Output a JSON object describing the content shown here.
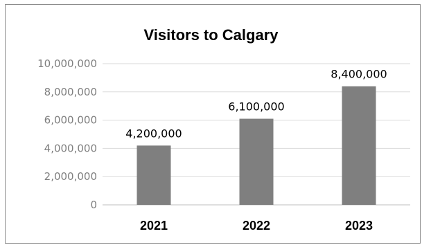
{
  "chart_data": {
    "type": "bar",
    "title": "Visitors to Calgary",
    "xlabel": "",
    "ylabel": "",
    "categories": [
      "2021",
      "2022",
      "2023"
    ],
    "values": [
      4200000,
      6100000,
      8400000
    ],
    "data_labels": [
      "4,200,000",
      "6,100,000",
      "8,400,000"
    ],
    "ylim": [
      0,
      10000000
    ],
    "yticks": [
      0,
      2000000,
      4000000,
      6000000,
      8000000,
      10000000
    ],
    "ytick_labels": [
      "0",
      "2,000,000",
      "4,000,000",
      "6,000,000",
      "8,000,000",
      "10,000,000"
    ],
    "grid": true,
    "legend": "none",
    "colors": {
      "bar": "#7f7f7f",
      "grid": "#d9d9d9",
      "axis_text": "#7f7f7f"
    }
  }
}
